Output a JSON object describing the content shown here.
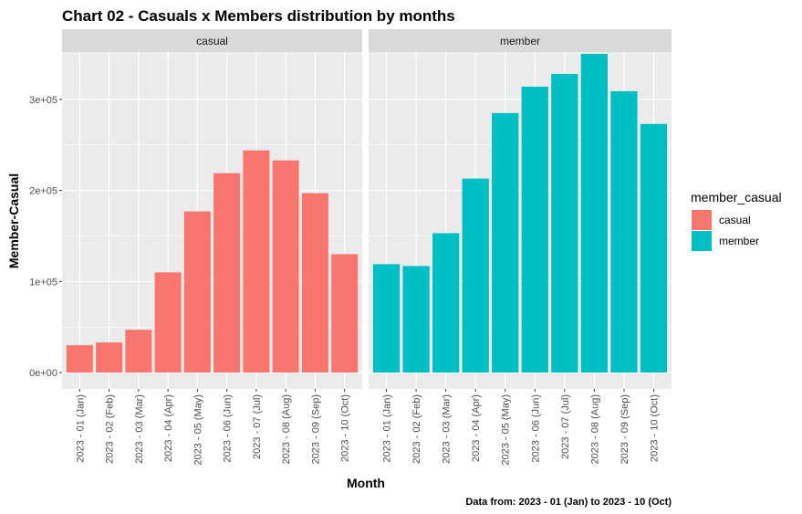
{
  "chart_data": {
    "type": "bar",
    "title": "Chart 02 - Casuals x Members distribution by months",
    "xlabel": "Month",
    "ylabel": "Member-Casual",
    "caption": "Data from: 2023 - 01 (Jan)  to  2023 - 10 (Oct)",
    "categories": [
      "2023 - 01 (Jan)",
      "2023 - 02 (Feb)",
      "2023 - 03 (Mar)",
      "2023 - 04 (Apr)",
      "2023 - 05 (May)",
      "2023 - 06 (Jun)",
      "2023 - 07 (Jul)",
      "2023 - 08 (Aug)",
      "2023 - 09 (Sep)",
      "2023 - 10 (Oct)"
    ],
    "ylim": [
      -18000,
      352000
    ],
    "yticks": [
      {
        "value": 0,
        "label": "0e+00"
      },
      {
        "value": 100000,
        "label": "1e+05"
      },
      {
        "value": 200000,
        "label": "2e+05"
      },
      {
        "value": 300000,
        "label": "3e+05"
      }
    ],
    "grid": true,
    "legend": {
      "title": "member_casual",
      "position": "right"
    },
    "series": [
      {
        "name": "casual",
        "color": "#F8766D",
        "values": [
          30000,
          33000,
          47000,
          110000,
          177000,
          219000,
          244000,
          233000,
          197000,
          130000
        ]
      },
      {
        "name": "member",
        "color": "#00BFC4",
        "values": [
          119000,
          117000,
          153000,
          213000,
          285000,
          314000,
          328000,
          350000,
          309000,
          273000
        ]
      }
    ]
  }
}
